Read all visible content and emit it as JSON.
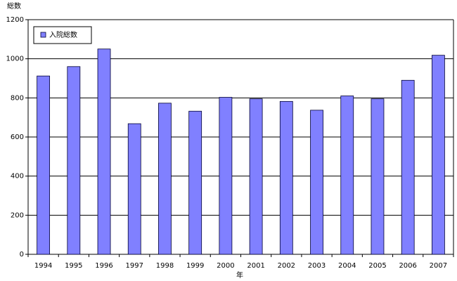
{
  "chart_data": {
    "type": "bar",
    "y_label": "総数",
    "x_label": "年",
    "categories": [
      "1994",
      "1995",
      "1996",
      "1997",
      "1998",
      "1999",
      "2000",
      "2001",
      "2002",
      "2003",
      "2004",
      "2005",
      "2006",
      "2007"
    ],
    "series": [
      {
        "name": "入院総数",
        "color": "#8080ff",
        "values": [
          912,
          960,
          1050,
          668,
          773,
          732,
          803,
          795,
          782,
          737,
          810,
          795,
          890,
          1018
        ]
      }
    ],
    "ylim": [
      0,
      1200
    ],
    "yticks": [
      0,
      200,
      400,
      600,
      800,
      1000,
      1200
    ],
    "grid": true,
    "legend": "top-left"
  }
}
